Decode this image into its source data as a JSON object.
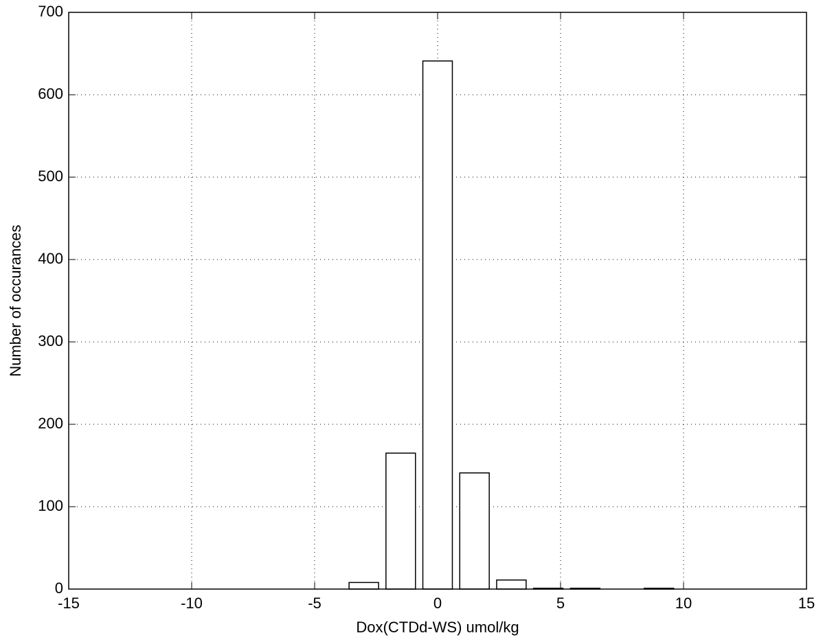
{
  "chart_data": {
    "type": "bar",
    "xlabel": "Dox(CTDd-WS) umol/kg",
    "ylabel": "Number of occurances",
    "x": [
      -3,
      -1.5,
      0,
      1.5,
      3,
      4.5,
      6,
      9
    ],
    "values": [
      8,
      165,
      641,
      141,
      11,
      1,
      1,
      1
    ],
    "color": "#ffffff",
    "xlim": [
      -15,
      15
    ],
    "xticks": [
      -15,
      -10,
      -5,
      0,
      5,
      10,
      15
    ],
    "ylim": [
      0,
      700
    ],
    "yticks": [
      0,
      100,
      200,
      300,
      400,
      500,
      600,
      700
    ],
    "grid": true
  }
}
